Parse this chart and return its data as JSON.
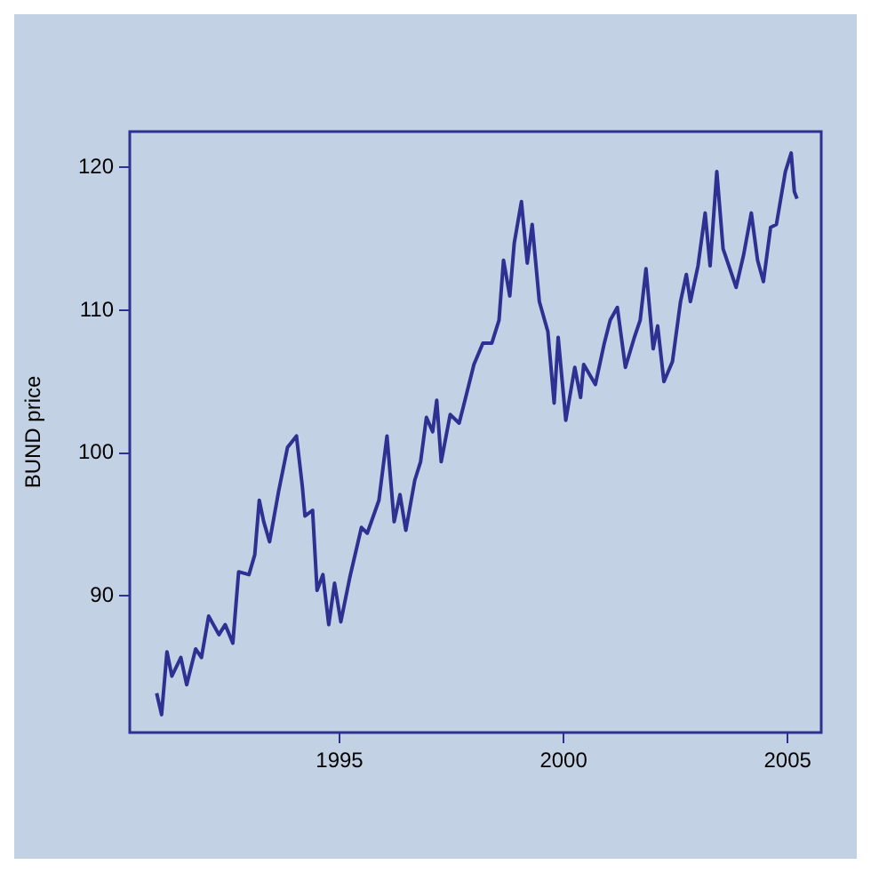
{
  "chart_data": {
    "type": "line",
    "ylabel": "BUND price",
    "xlim": [
      1990.32,
      2005.75
    ],
    "ylim": [
      80.45,
      122.5
    ],
    "xticks": [
      1995,
      2000,
      2005
    ],
    "yticks": [
      90,
      100,
      110,
      120
    ],
    "color": "#2e3192",
    "x": [
      1990.92,
      1991.03,
      1991.15,
      1991.26,
      1991.46,
      1991.59,
      1991.79,
      1991.92,
      1992.08,
      1992.31,
      1992.45,
      1992.62,
      1992.75,
      1992.98,
      1993.11,
      1993.21,
      1993.31,
      1993.44,
      1993.64,
      1993.84,
      1994.04,
      1994.17,
      1994.23,
      1994.4,
      1994.5,
      1994.63,
      1994.76,
      1994.89,
      1995.03,
      1995.23,
      1995.49,
      1995.62,
      1995.88,
      1996.06,
      1996.22,
      1996.35,
      1996.48,
      1996.68,
      1996.81,
      1996.94,
      1997.08,
      1997.17,
      1997.27,
      1997.47,
      1997.67,
      1997.8,
      1998.0,
      1998.2,
      1998.4,
      1998.56,
      1998.66,
      1998.8,
      1998.9,
      1999.06,
      1999.19,
      1999.3,
      1999.46,
      1999.65,
      1999.79,
      1999.88,
      2000.05,
      2000.25,
      2000.38,
      2000.45,
      2000.71,
      2000.91,
      2001.04,
      2001.2,
      2001.38,
      2001.58,
      2001.71,
      2001.84,
      2002.0,
      2002.1,
      2002.24,
      2002.43,
      2002.61,
      2002.74,
      2002.83,
      2003.0,
      2003.16,
      2003.27,
      2003.42,
      2003.56,
      2003.69,
      2003.85,
      2004.02,
      2004.19,
      2004.33,
      2004.46,
      2004.62,
      2004.75,
      2004.95,
      2005.08,
      2005.15,
      2005.21
    ],
    "values": [
      83.2,
      81.7,
      86.1,
      84.4,
      85.7,
      83.8,
      86.3,
      85.7,
      88.6,
      87.3,
      88.0,
      86.7,
      91.7,
      91.5,
      92.9,
      96.7,
      95.2,
      93.8,
      97.3,
      100.4,
      101.2,
      97.7,
      95.6,
      96.0,
      90.4,
      91.5,
      88.0,
      90.9,
      88.2,
      91.3,
      94.8,
      94.4,
      96.7,
      101.2,
      95.2,
      97.1,
      94.6,
      98.1,
      99.4,
      102.5,
      101.5,
      103.7,
      99.4,
      102.7,
      102.1,
      103.7,
      106.2,
      107.7,
      107.7,
      109.3,
      113.5,
      111.0,
      114.7,
      117.6,
      113.3,
      116.0,
      110.6,
      108.5,
      103.5,
      108.1,
      102.3,
      106.0,
      103.9,
      106.2,
      104.8,
      107.7,
      109.3,
      110.2,
      106.0,
      108.1,
      109.3,
      112.9,
      107.3,
      108.9,
      105.0,
      106.4,
      110.6,
      112.5,
      110.6,
      113.1,
      116.8,
      113.1,
      119.7,
      114.3,
      113.1,
      111.6,
      113.9,
      116.8,
      113.5,
      112.0,
      115.8,
      116.0,
      119.7,
      121.0,
      118.3,
      117.8
    ]
  }
}
